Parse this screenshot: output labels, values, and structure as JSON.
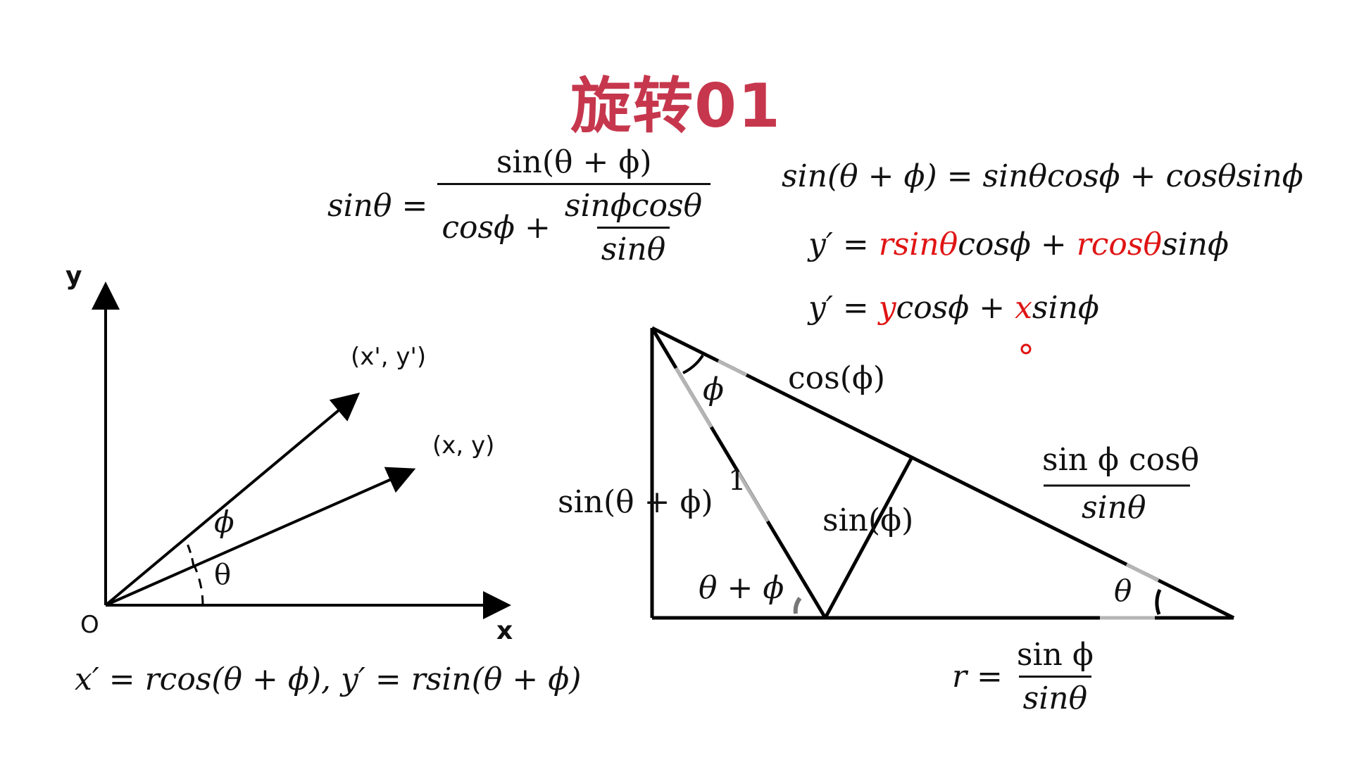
{
  "title": "旋转01",
  "formulas": {
    "sin_theta_lhs": "sinθ =",
    "sin_theta_num": "sin(θ + ϕ)",
    "sin_theta_den_a": "cosϕ +",
    "sin_theta_den_num": "sinϕcosθ",
    "sin_theta_den_den": "sinθ",
    "identity": "sin(θ + ϕ) = sinθcosϕ + cosθsinϕ",
    "yprime1": {
      "p1": "y′ = ",
      "p2": "rsinθ",
      "p3": "cosϕ + ",
      "p4": "rcosθ",
      "p5": "sinϕ"
    },
    "yprime2": {
      "p1": "y′ = ",
      "p2": "y",
      "p3": "cosϕ + ",
      "p4": "x",
      "p5": "sinϕ"
    },
    "bottom_left": "x′ = rcos(θ + ϕ), y′ = rsin(θ + ϕ)",
    "r_lhs": "r =",
    "r_num": "sin ϕ",
    "r_den": "sinθ"
  },
  "axes": {
    "y_label": "y",
    "x_label": "x",
    "origin_label": "O",
    "point_prime": "(x', y')",
    "point": "(x, y)",
    "phi": "ϕ",
    "theta": "θ"
  },
  "triangle": {
    "phi": "ϕ",
    "cos_phi": "cos(ϕ)",
    "one": "1",
    "sin_theta_phi": "sin(θ + ϕ)",
    "sin_phi": "sin(ϕ)",
    "theta_phi": "θ + ϕ",
    "theta": "θ",
    "frac_num": "sin ϕ cosθ",
    "frac_den": "sinθ"
  },
  "colors": {
    "title": "#c6374d",
    "highlight": "#e01414"
  }
}
